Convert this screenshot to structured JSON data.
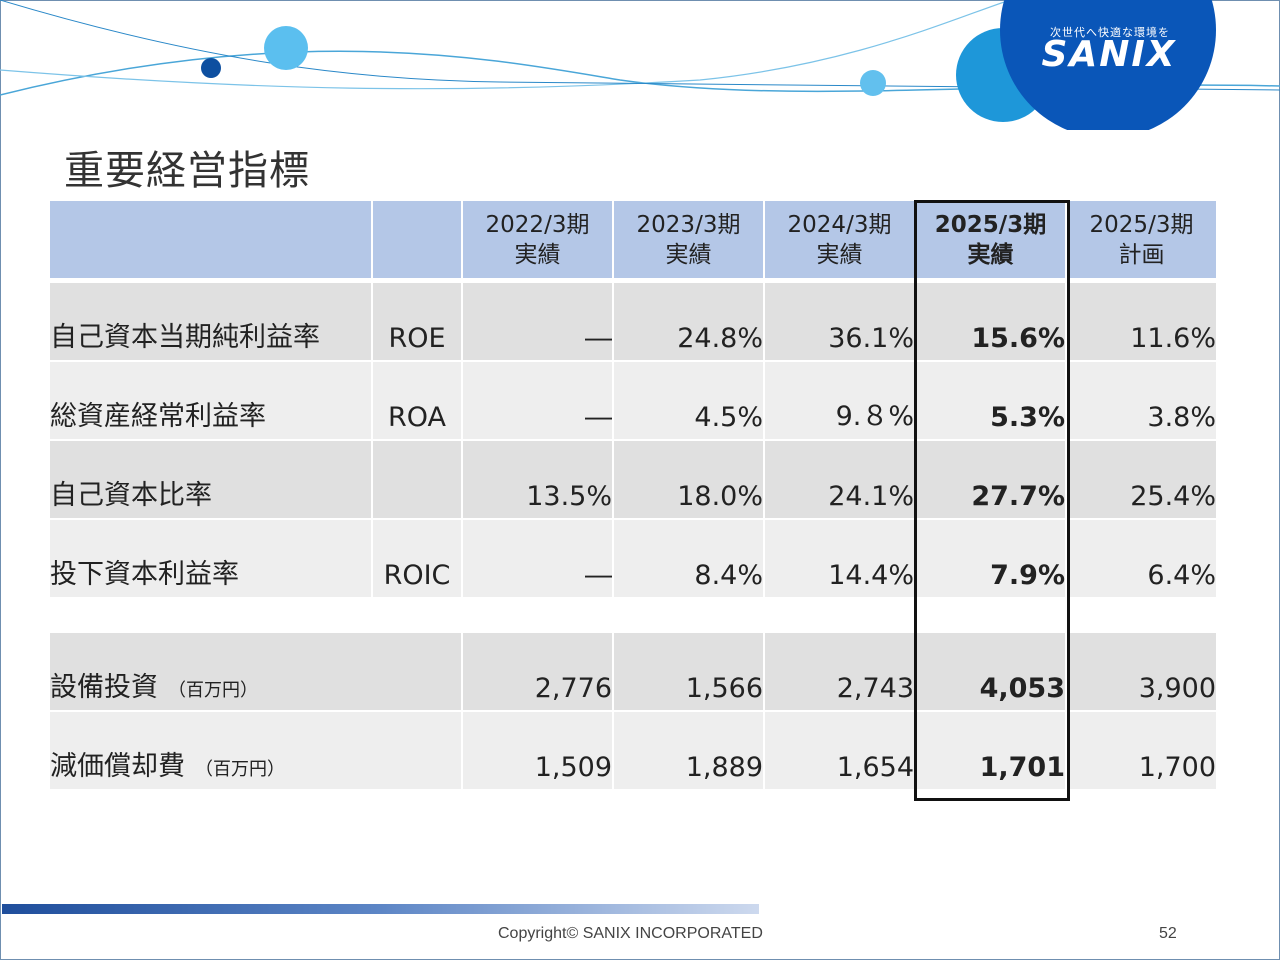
{
  "title": "重要経営指標",
  "logo": {
    "tagline": "次世代へ快適な環境を",
    "name": "SANIX"
  },
  "columns": [
    {
      "line1": "2022/3期",
      "line2": "実績",
      "bold": false
    },
    {
      "line1": "2023/3期",
      "line2": "実績",
      "bold": false
    },
    {
      "line1": "2024/3期",
      "line2": "実績",
      "bold": false
    },
    {
      "line1": "2025/3期",
      "line2": "実績",
      "bold": true
    },
    {
      "line1": "2025/3期",
      "line2": "計画",
      "bold": false
    }
  ],
  "rows": [
    {
      "label": "自己資本当期純利益率",
      "abbr": "ROE",
      "unit": "",
      "values": [
        "―",
        "24.8%",
        "36.1%",
        "15.6%",
        "11.6%"
      ]
    },
    {
      "label": "総資産経常利益率",
      "abbr": "ROA",
      "unit": "",
      "values": [
        "―",
        "4.5%",
        "9.８%",
        "5.3%",
        "3.8%"
      ]
    },
    {
      "label": "自己資本比率",
      "abbr": "",
      "unit": "",
      "values": [
        "13.5%",
        "18.0%",
        "24.1%",
        "27.7%",
        "25.4%"
      ]
    },
    {
      "label": "投下資本利益率",
      "abbr": "ROIC",
      "unit": "",
      "values": [
        "―",
        "8.4%",
        "14.4%",
        "7.9%",
        "6.4%"
      ]
    },
    {
      "label": "設備投資",
      "abbr": "",
      "unit": "（百万円）",
      "values": [
        "2,776",
        "1,566",
        "2,743",
        "4,053",
        "3,900"
      ]
    },
    {
      "label": "減価償却費",
      "abbr": "",
      "unit": "（百万円）",
      "values": [
        "1,509",
        "1,889",
        "1,654",
        "1,701",
        "1,700"
      ]
    }
  ],
  "footer": {
    "copyright": "Copyright©  SANIX INCORPORATED",
    "page": "52"
  },
  "colors": {
    "header_bg": "#b4c7e7",
    "row_dark": "#e0e0e0",
    "row_light": "#eeeeee",
    "brand_blue": "#0a5bbf"
  }
}
